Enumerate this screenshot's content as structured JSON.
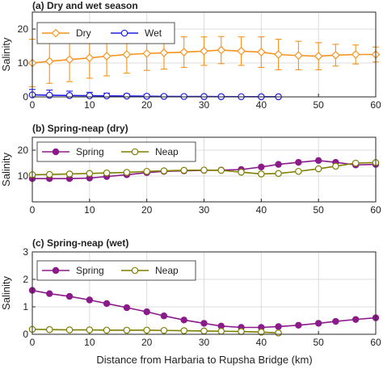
{
  "figure": {
    "xlabel": "Distance from Harbaria to Rupsha Bridge (km)",
    "x_ticks": [
      "0",
      "10",
      "20",
      "30",
      "40",
      "50",
      "60"
    ],
    "xlim": [
      0,
      60
    ]
  },
  "chart_data": [
    {
      "type": "line",
      "title": "(a) Dry and wet season",
      "ylabel": "Salinity",
      "ylim": [
        0,
        25
      ],
      "xlim": [
        0,
        60
      ],
      "y_ticks": [
        "0",
        "10",
        "20"
      ],
      "grid": true,
      "legend_position": "top-left",
      "error_bars": true,
      "series": [
        {
          "name": "Dry",
          "color": "#f7931e",
          "marker": "open-diamond",
          "x": [
            0,
            3,
            6.5,
            10,
            13,
            16.5,
            20,
            23,
            26.5,
            30,
            33,
            36.5,
            40,
            43,
            46.5,
            50,
            53,
            56.5,
            60
          ],
          "y": [
            10.0,
            10.5,
            11.0,
            11.5,
            12.0,
            12.5,
            12.8,
            13.0,
            13.2,
            13.5,
            13.8,
            13.5,
            13.2,
            12.5,
            12.2,
            12.0,
            12.3,
            12.5,
            12.5
          ],
          "err": [
            7.0,
            6.5,
            6.5,
            6.0,
            5.8,
            5.5,
            5.0,
            4.8,
            4.5,
            4.2,
            4.0,
            4.2,
            4.5,
            4.5,
            4.2,
            4.0,
            3.2,
            2.8,
            2.2
          ]
        },
        {
          "name": "Wet",
          "color": "#1f1fe6",
          "marker": "open-circle",
          "x": [
            0,
            3,
            6.5,
            10,
            13,
            16.5,
            20,
            23,
            26.5,
            30,
            33,
            36.5,
            40,
            43
          ],
          "y": [
            0.6,
            0.5,
            0.4,
            0.35,
            0.3,
            0.25,
            0.2,
            0.15,
            0.12,
            0.1,
            0.08,
            0.06,
            0.05,
            0.05
          ],
          "err": [
            1.6,
            1.5,
            1.3,
            1.0,
            0.8,
            0.6,
            0.5,
            0.4,
            0.3,
            0.25,
            0.2,
            0.15,
            0.1,
            0.1
          ]
        }
      ]
    },
    {
      "type": "line",
      "title": "(b) Spring-neap (dry)",
      "ylabel": "Salinity",
      "ylim": [
        0,
        25
      ],
      "xlim": [
        0,
        60
      ],
      "y_ticks": [
        "10",
        "20"
      ],
      "grid": true,
      "legend_position": "top-left",
      "series": [
        {
          "name": "Spring",
          "color": "#8b1a8b",
          "marker": "filled-circle",
          "x": [
            0,
            3,
            6.5,
            10,
            13,
            16.5,
            20,
            23,
            26.5,
            30,
            33,
            36.5,
            40,
            43,
            46.5,
            50,
            53,
            56.5,
            60
          ],
          "y": [
            9.0,
            9.0,
            9.0,
            9.2,
            9.8,
            10.5,
            11.3,
            11.8,
            12.0,
            12.2,
            12.3,
            12.5,
            13.5,
            14.5,
            15.3,
            16.0,
            15.3,
            14.3,
            14.5
          ],
          "err": []
        },
        {
          "name": "Neap",
          "color": "#7f7f00",
          "marker": "open-circle",
          "x": [
            0,
            3,
            6.5,
            10,
            13,
            16.5,
            20,
            23,
            26.5,
            30,
            33,
            36.5,
            40,
            43,
            46.5,
            50,
            53,
            56.5,
            60
          ],
          "y": [
            10.5,
            10.6,
            10.8,
            11.0,
            11.2,
            11.4,
            11.8,
            12.0,
            12.2,
            12.3,
            12.2,
            11.5,
            10.8,
            11.0,
            11.8,
            12.8,
            13.8,
            15.0,
            15.2
          ],
          "err": []
        }
      ]
    },
    {
      "type": "line",
      "title": "(c) Spring-neap (wet)",
      "ylabel": "Salinity",
      "ylim": [
        0,
        3
      ],
      "xlim": [
        0,
        60
      ],
      "y_ticks": [
        "0",
        "1",
        "2",
        "3"
      ],
      "grid": true,
      "legend_position": "top-left",
      "series": [
        {
          "name": "Spring",
          "color": "#8b1a8b",
          "marker": "filled-circle",
          "x": [
            0,
            3,
            6.5,
            10,
            13,
            16.5,
            20,
            23,
            26.5,
            30,
            33,
            36.5,
            40,
            43,
            46.5,
            50,
            53,
            56.5,
            60
          ],
          "y": [
            1.6,
            1.48,
            1.38,
            1.25,
            1.12,
            0.97,
            0.82,
            0.67,
            0.52,
            0.4,
            0.3,
            0.25,
            0.25,
            0.28,
            0.33,
            0.4,
            0.47,
            0.54,
            0.6
          ],
          "err": []
        },
        {
          "name": "Neap",
          "color": "#7f7f00",
          "marker": "open-circle",
          "x": [
            0,
            3,
            6.5,
            10,
            13,
            16.5,
            20,
            23,
            26.5,
            30,
            33,
            36.5,
            40,
            43
          ],
          "y": [
            0.18,
            0.17,
            0.16,
            0.16,
            0.15,
            0.15,
            0.15,
            0.14,
            0.13,
            0.12,
            0.11,
            0.1,
            0.08,
            0.05
          ],
          "err": []
        }
      ]
    }
  ]
}
